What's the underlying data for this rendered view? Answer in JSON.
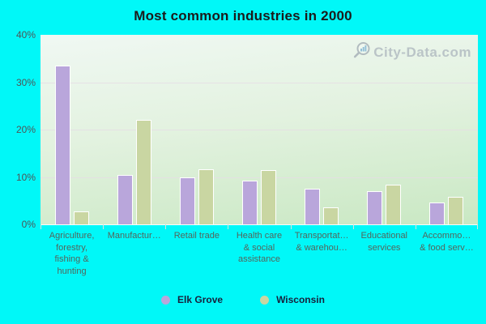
{
  "title": "Most common industries in 2000",
  "watermark": {
    "text": "City-Data.com",
    "logo_icon": "magnifier-bars-icon"
  },
  "y_axis": {
    "tick_labels_top_to_bottom": [
      "40%",
      "30%",
      "20%",
      "10%",
      "0%"
    ]
  },
  "legend": {
    "items": [
      {
        "label": "Elk Grove"
      },
      {
        "label": "Wisconsin"
      }
    ]
  },
  "colors": {
    "background": "#00f8f8",
    "elk_grove_bar": "#b9a6db",
    "wisconsin_bar": "#c9d6a2",
    "bar_border": "#ffffff",
    "gridline": "#e5dde4",
    "watermark_text": "#b2bcc2",
    "watermark_bars": "#85b7d4"
  },
  "chart_data": {
    "type": "bar",
    "title": "Most common industries in 2000",
    "categories": [
      "Agriculture,\nforestry,\nfishing &\nhunting",
      "Manufactur…",
      "Retail trade",
      "Health care\n& social\nassistance",
      "Transportat…\n& warehou…",
      "Educational\nservices",
      "Accommo…\n& food serv…"
    ],
    "series": [
      {
        "name": "Elk Grove",
        "color": "#b9a6db",
        "values": [
          33.5,
          10.5,
          10.0,
          9.3,
          7.5,
          7.0,
          4.6
        ]
      },
      {
        "name": "Wisconsin",
        "color": "#c9d6a2",
        "values": [
          2.7,
          22.0,
          11.6,
          11.5,
          3.6,
          8.4,
          5.9
        ]
      }
    ],
    "ylabel": "",
    "xlabel": "",
    "ylim": [
      0,
      40
    ],
    "y_tick_format": "percent",
    "grid": "horizontal",
    "legend_position": "bottom"
  }
}
